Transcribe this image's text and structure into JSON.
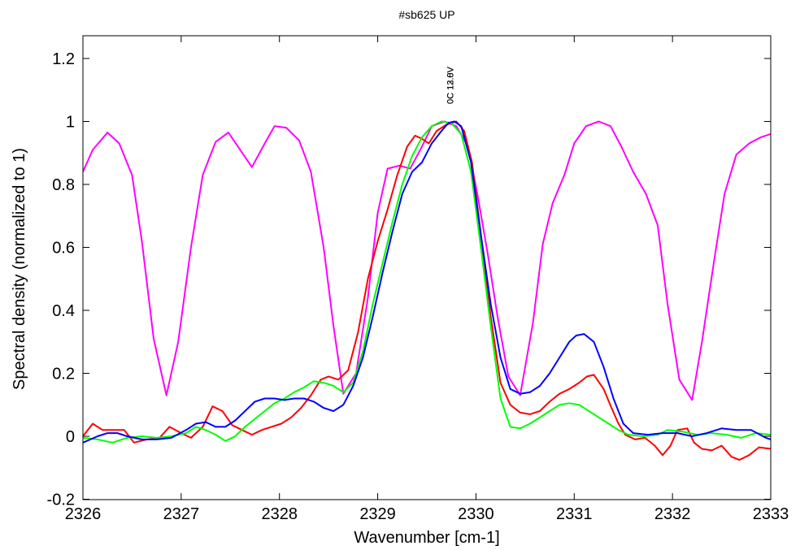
{
  "chart_data": {
    "type": "line",
    "title": "#sb625 UP",
    "xlabel": "Wavenumber [cm-1]",
    "ylabel": "Spectral density (normalized to 1)",
    "xlim": [
      2326,
      2333
    ],
    "ylim": [
      -0.2,
      1.25
    ],
    "xticks": [
      2326,
      2327,
      2328,
      2329,
      2330,
      2331,
      2332,
      2333
    ],
    "xtick_labels": [
      "2326",
      "2327",
      "2328",
      "2329",
      "2330",
      "2331",
      "2332",
      "2333"
    ],
    "yticks": [
      -0.2,
      0,
      0.2,
      0.4,
      0.6,
      0.8,
      1,
      1.2
    ],
    "ytick_labels": [
      "-0.2",
      "0",
      "0.2",
      "0.4",
      "0.6",
      "0.8",
      "1",
      "1.2"
    ],
    "grid": false,
    "annotations": [
      {
        "text": "0C 13.0V",
        "x": 2329.8
      },
      {
        "text": "0C 12.8V",
        "x": 2329.8
      }
    ],
    "series": [
      {
        "color": "#ff00ff",
        "points": [
          [
            2326.0,
            0.84
          ],
          [
            2326.1,
            0.91
          ],
          [
            2326.25,
            0.965
          ],
          [
            2326.37,
            0.93
          ],
          [
            2326.5,
            0.83
          ],
          [
            2326.6,
            0.62
          ],
          [
            2326.72,
            0.31
          ],
          [
            2326.85,
            0.13
          ],
          [
            2326.97,
            0.3
          ],
          [
            2327.1,
            0.6
          ],
          [
            2327.22,
            0.83
          ],
          [
            2327.35,
            0.935
          ],
          [
            2327.48,
            0.965
          ],
          [
            2327.6,
            0.91
          ],
          [
            2327.72,
            0.855
          ],
          [
            2327.85,
            0.93
          ],
          [
            2327.95,
            0.985
          ],
          [
            2328.07,
            0.98
          ],
          [
            2328.2,
            0.94
          ],
          [
            2328.32,
            0.84
          ],
          [
            2328.45,
            0.6
          ],
          [
            2328.55,
            0.35
          ],
          [
            2328.65,
            0.135
          ],
          [
            2328.78,
            0.2
          ],
          [
            2328.9,
            0.44
          ],
          [
            2329.0,
            0.71
          ],
          [
            2329.1,
            0.85
          ],
          [
            2329.22,
            0.86
          ],
          [
            2329.33,
            0.85
          ],
          [
            2329.45,
            0.92
          ],
          [
            2329.55,
            0.985
          ],
          [
            2329.68,
            1.0
          ],
          [
            2329.8,
            0.985
          ],
          [
            2329.92,
            0.92
          ],
          [
            2330.02,
            0.76
          ],
          [
            2330.12,
            0.58
          ],
          [
            2330.22,
            0.38
          ],
          [
            2330.33,
            0.19
          ],
          [
            2330.45,
            0.13
          ],
          [
            2330.58,
            0.36
          ],
          [
            2330.68,
            0.61
          ],
          [
            2330.78,
            0.74
          ],
          [
            2330.9,
            0.83
          ],
          [
            2331.0,
            0.93
          ],
          [
            2331.12,
            0.985
          ],
          [
            2331.25,
            1.0
          ],
          [
            2331.37,
            0.985
          ],
          [
            2331.48,
            0.92
          ],
          [
            2331.6,
            0.84
          ],
          [
            2331.73,
            0.77
          ],
          [
            2331.85,
            0.67
          ],
          [
            2331.95,
            0.42
          ],
          [
            2332.07,
            0.18
          ],
          [
            2332.2,
            0.115
          ],
          [
            2332.3,
            0.3
          ],
          [
            2332.42,
            0.55
          ],
          [
            2332.53,
            0.77
          ],
          [
            2332.65,
            0.895
          ],
          [
            2332.78,
            0.93
          ],
          [
            2332.9,
            0.95
          ],
          [
            2333.0,
            0.96
          ]
        ]
      },
      {
        "color": "#ff0000",
        "points": [
          [
            2326.0,
            0.0
          ],
          [
            2326.1,
            0.04
          ],
          [
            2326.2,
            0.02
          ],
          [
            2326.32,
            0.02
          ],
          [
            2326.42,
            0.02
          ],
          [
            2326.52,
            -0.02
          ],
          [
            2326.65,
            -0.01
          ],
          [
            2326.78,
            -0.005
          ],
          [
            2326.88,
            0.03
          ],
          [
            2327.0,
            0.01
          ],
          [
            2327.1,
            -0.005
          ],
          [
            2327.22,
            0.03
          ],
          [
            2327.32,
            0.095
          ],
          [
            2327.42,
            0.08
          ],
          [
            2327.52,
            0.035
          ],
          [
            2327.62,
            0.02
          ],
          [
            2327.72,
            0.005
          ],
          [
            2327.82,
            0.02
          ],
          [
            2327.92,
            0.03
          ],
          [
            2328.02,
            0.04
          ],
          [
            2328.12,
            0.06
          ],
          [
            2328.22,
            0.09
          ],
          [
            2328.32,
            0.13
          ],
          [
            2328.42,
            0.18
          ],
          [
            2328.5,
            0.19
          ],
          [
            2328.6,
            0.18
          ],
          [
            2328.7,
            0.21
          ],
          [
            2328.8,
            0.33
          ],
          [
            2328.9,
            0.5
          ],
          [
            2329.0,
            0.62
          ],
          [
            2329.1,
            0.72
          ],
          [
            2329.2,
            0.83
          ],
          [
            2329.3,
            0.92
          ],
          [
            2329.38,
            0.955
          ],
          [
            2329.45,
            0.945
          ],
          [
            2329.52,
            0.93
          ],
          [
            2329.6,
            0.97
          ],
          [
            2329.7,
            0.99
          ],
          [
            2329.8,
            1.0
          ],
          [
            2329.88,
            0.97
          ],
          [
            2329.96,
            0.87
          ],
          [
            2330.05,
            0.64
          ],
          [
            2330.15,
            0.38
          ],
          [
            2330.25,
            0.17
          ],
          [
            2330.35,
            0.1
          ],
          [
            2330.45,
            0.075
          ],
          [
            2330.55,
            0.07
          ],
          [
            2330.65,
            0.08
          ],
          [
            2330.75,
            0.11
          ],
          [
            2330.85,
            0.135
          ],
          [
            2330.95,
            0.15
          ],
          [
            2331.05,
            0.17
          ],
          [
            2331.13,
            0.19
          ],
          [
            2331.2,
            0.195
          ],
          [
            2331.3,
            0.15
          ],
          [
            2331.38,
            0.09
          ],
          [
            2331.45,
            0.04
          ],
          [
            2331.52,
            0.005
          ],
          [
            2331.62,
            -0.01
          ],
          [
            2331.72,
            -0.005
          ],
          [
            2331.82,
            -0.03
          ],
          [
            2331.9,
            -0.06
          ],
          [
            2331.98,
            -0.03
          ],
          [
            2332.05,
            0.02
          ],
          [
            2332.15,
            0.025
          ],
          [
            2332.22,
            -0.02
          ],
          [
            2332.3,
            -0.04
          ],
          [
            2332.4,
            -0.045
          ],
          [
            2332.5,
            -0.03
          ],
          [
            2332.6,
            -0.065
          ],
          [
            2332.68,
            -0.075
          ],
          [
            2332.78,
            -0.06
          ],
          [
            2332.88,
            -0.035
          ],
          [
            2333.0,
            -0.04
          ]
        ]
      },
      {
        "color": "#00ff00",
        "points": [
          [
            2326.0,
            -0.005
          ],
          [
            2326.15,
            -0.01
          ],
          [
            2326.3,
            -0.02
          ],
          [
            2326.45,
            -0.005
          ],
          [
            2326.6,
            0.0
          ],
          [
            2326.75,
            -0.005
          ],
          [
            2326.9,
            0.0
          ],
          [
            2327.05,
            0.01
          ],
          [
            2327.15,
            0.03
          ],
          [
            2327.25,
            0.02
          ],
          [
            2327.35,
            0.005
          ],
          [
            2327.45,
            -0.015
          ],
          [
            2327.55,
            0.0
          ],
          [
            2327.65,
            0.03
          ],
          [
            2327.75,
            0.055
          ],
          [
            2327.85,
            0.08
          ],
          [
            2327.95,
            0.105
          ],
          [
            2328.05,
            0.12
          ],
          [
            2328.15,
            0.14
          ],
          [
            2328.25,
            0.155
          ],
          [
            2328.35,
            0.175
          ],
          [
            2328.45,
            0.17
          ],
          [
            2328.55,
            0.16
          ],
          [
            2328.65,
            0.14
          ],
          [
            2328.75,
            0.17
          ],
          [
            2328.85,
            0.27
          ],
          [
            2328.95,
            0.42
          ],
          [
            2329.05,
            0.55
          ],
          [
            2329.15,
            0.68
          ],
          [
            2329.25,
            0.8
          ],
          [
            2329.35,
            0.89
          ],
          [
            2329.45,
            0.95
          ],
          [
            2329.55,
            0.985
          ],
          [
            2329.65,
            1.0
          ],
          [
            2329.75,
            0.995
          ],
          [
            2329.85,
            0.96
          ],
          [
            2329.95,
            0.84
          ],
          [
            2330.05,
            0.6
          ],
          [
            2330.15,
            0.35
          ],
          [
            2330.25,
            0.12
          ],
          [
            2330.35,
            0.03
          ],
          [
            2330.45,
            0.025
          ],
          [
            2330.55,
            0.04
          ],
          [
            2330.65,
            0.06
          ],
          [
            2330.75,
            0.08
          ],
          [
            2330.85,
            0.1
          ],
          [
            2330.95,
            0.105
          ],
          [
            2331.05,
            0.1
          ],
          [
            2331.15,
            0.08
          ],
          [
            2331.25,
            0.06
          ],
          [
            2331.35,
            0.04
          ],
          [
            2331.45,
            0.02
          ],
          [
            2331.55,
            0.005
          ],
          [
            2331.7,
            0.0
          ],
          [
            2331.85,
            0.005
          ],
          [
            2331.95,
            0.02
          ],
          [
            2332.1,
            0.015
          ],
          [
            2332.25,
            0.005
          ],
          [
            2332.4,
            0.01
          ],
          [
            2332.55,
            0.005
          ],
          [
            2332.7,
            -0.005
          ],
          [
            2332.85,
            0.01
          ],
          [
            2333.0,
            0.005
          ]
        ]
      },
      {
        "color": "#0000ff",
        "points": [
          [
            2326.0,
            -0.02
          ],
          [
            2326.15,
            0.0
          ],
          [
            2326.25,
            0.01
          ],
          [
            2326.35,
            0.01
          ],
          [
            2326.45,
            0.0
          ],
          [
            2326.6,
            -0.01
          ],
          [
            2326.75,
            -0.01
          ],
          [
            2326.9,
            -0.005
          ],
          [
            2327.05,
            0.02
          ],
          [
            2327.15,
            0.04
          ],
          [
            2327.25,
            0.045
          ],
          [
            2327.35,
            0.03
          ],
          [
            2327.45,
            0.03
          ],
          [
            2327.55,
            0.05
          ],
          [
            2327.65,
            0.08
          ],
          [
            2327.75,
            0.11
          ],
          [
            2327.85,
            0.12
          ],
          [
            2327.95,
            0.12
          ],
          [
            2328.05,
            0.115
          ],
          [
            2328.15,
            0.12
          ],
          [
            2328.25,
            0.12
          ],
          [
            2328.35,
            0.11
          ],
          [
            2328.45,
            0.09
          ],
          [
            2328.55,
            0.08
          ],
          [
            2328.65,
            0.1
          ],
          [
            2328.75,
            0.16
          ],
          [
            2328.85,
            0.25
          ],
          [
            2328.95,
            0.38
          ],
          [
            2329.05,
            0.52
          ],
          [
            2329.15,
            0.65
          ],
          [
            2329.25,
            0.77
          ],
          [
            2329.35,
            0.84
          ],
          [
            2329.45,
            0.87
          ],
          [
            2329.55,
            0.93
          ],
          [
            2329.65,
            0.97
          ],
          [
            2329.72,
            0.995
          ],
          [
            2329.78,
            1.0
          ],
          [
            2329.85,
            0.985
          ],
          [
            2329.95,
            0.87
          ],
          [
            2330.05,
            0.64
          ],
          [
            2330.15,
            0.42
          ],
          [
            2330.25,
            0.25
          ],
          [
            2330.35,
            0.15
          ],
          [
            2330.45,
            0.135
          ],
          [
            2330.55,
            0.14
          ],
          [
            2330.65,
            0.16
          ],
          [
            2330.75,
            0.2
          ],
          [
            2330.85,
            0.25
          ],
          [
            2330.95,
            0.3
          ],
          [
            2331.02,
            0.32
          ],
          [
            2331.1,
            0.325
          ],
          [
            2331.2,
            0.3
          ],
          [
            2331.3,
            0.22
          ],
          [
            2331.4,
            0.12
          ],
          [
            2331.5,
            0.04
          ],
          [
            2331.6,
            0.01
          ],
          [
            2331.75,
            0.005
          ],
          [
            2331.9,
            0.01
          ],
          [
            2332.05,
            0.01
          ],
          [
            2332.2,
            0.0
          ],
          [
            2332.35,
            0.01
          ],
          [
            2332.5,
            0.025
          ],
          [
            2332.65,
            0.02
          ],
          [
            2332.8,
            0.02
          ],
          [
            2332.95,
            -0.005
          ],
          [
            2333.0,
            -0.01
          ]
        ]
      }
    ]
  }
}
